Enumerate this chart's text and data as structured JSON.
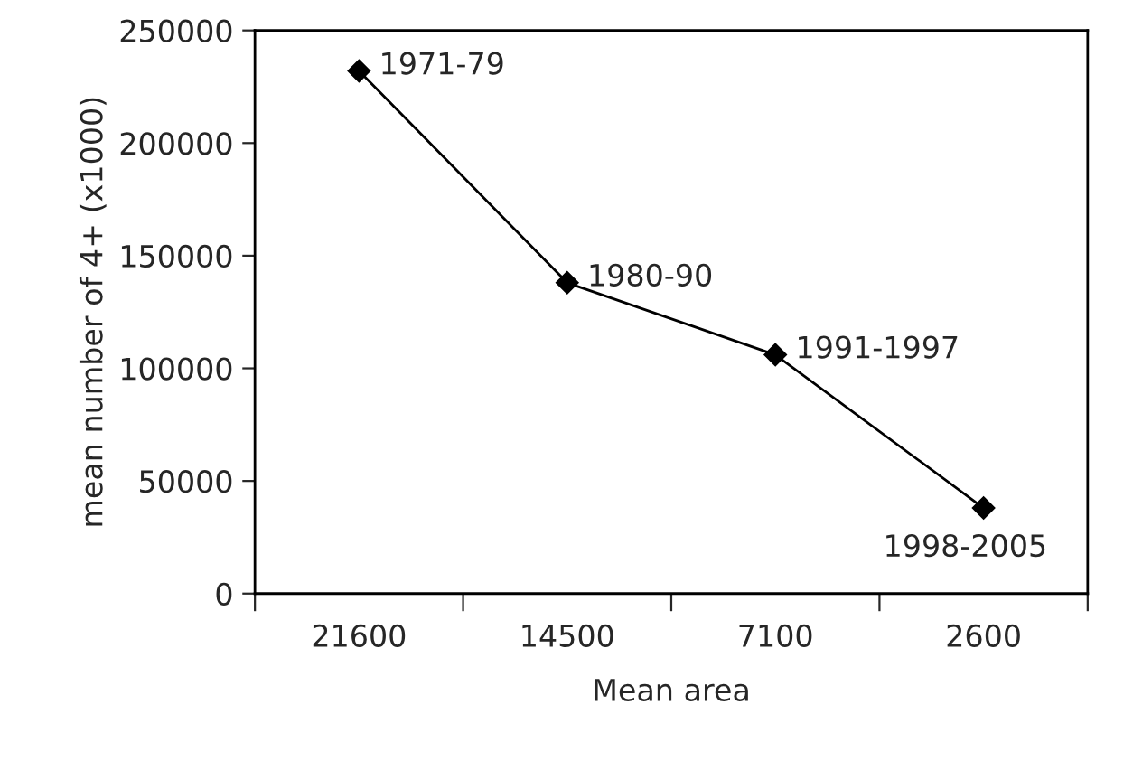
{
  "chart_data": {
    "type": "line",
    "xlabel": "Mean area",
    "ylabel": "mean number of 4+ (x1000)",
    "categories": [
      "21600",
      "14500",
      "7100",
      "2600"
    ],
    "series": [
      {
        "color": "#000000",
        "values": [
          232000,
          138000,
          106000,
          38000
        ]
      }
    ],
    "ylim": [
      0,
      250000
    ],
    "yticks": [
      0,
      50000,
      100000,
      150000,
      200000,
      250000
    ],
    "marker": "diamond",
    "line_style": "solid",
    "grid": false,
    "legend": false,
    "annotations": [
      {
        "text": "1971-79",
        "x": "21600",
        "y": 232000
      },
      {
        "text": "1980-90",
        "x": "14500",
        "y": 138000
      },
      {
        "text": "1991-1997",
        "x": "7100",
        "y": 106000
      },
      {
        "text": "1998-2005",
        "x": "2600",
        "y": 38000
      }
    ]
  }
}
